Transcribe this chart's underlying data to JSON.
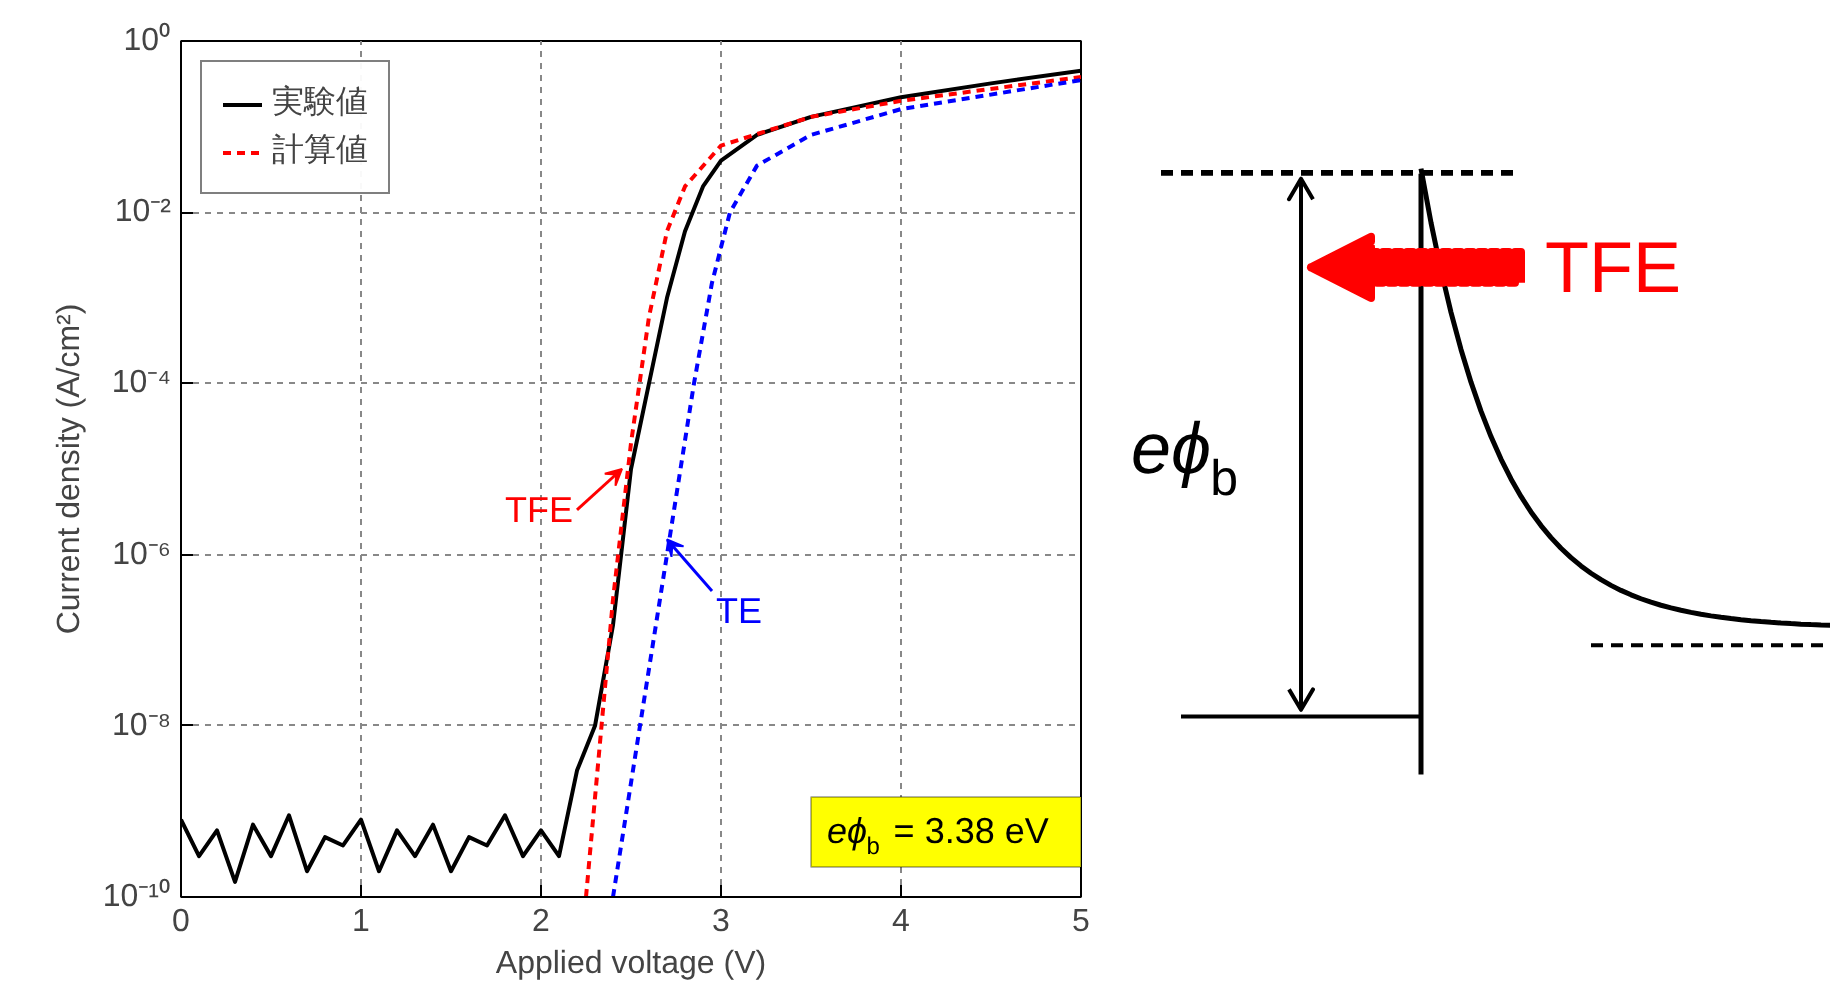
{
  "chart_data": [
    {
      "type": "line",
      "xlabel": "Applied voltage (V)",
      "ylabel": "Current density (A/cm²)",
      "log": "y",
      "xlim": [
        0,
        5
      ],
      "xticks": [
        0,
        1,
        2,
        3,
        4,
        5
      ],
      "ylim": [
        1e-10,
        1
      ],
      "yticks": [
        {
          "value": 1e-10,
          "label": "10⁻¹⁰"
        },
        {
          "value": 1e-08,
          "label": "10⁻⁸"
        },
        {
          "value": 1e-06,
          "label": "10⁻⁶"
        },
        {
          "value": 0.0001,
          "label": "10⁻⁴"
        },
        {
          "value": 0.01,
          "label": "10⁻²"
        },
        {
          "value": 1,
          "label": "10⁰"
        }
      ],
      "grid": true,
      "legend": "top left",
      "series": [
        {
          "name": "実験値",
          "color": "#000000",
          "line_style": "solid",
          "x": [
            0,
            0.1,
            0.2,
            0.3,
            0.4,
            0.5,
            0.6,
            0.7,
            0.8,
            0.9,
            1.0,
            1.1,
            1.2,
            1.3,
            1.4,
            1.5,
            1.6,
            1.7,
            1.8,
            1.9,
            2.0,
            2.1,
            2.2,
            2.3,
            2.4,
            2.5,
            2.6,
            2.7,
            2.8,
            2.9,
            3.0,
            3.2,
            3.5,
            4.0,
            4.5,
            5.0
          ],
          "values": [
            8e-10,
            3e-10,
            6e-10,
            1.5e-10,
            7e-10,
            3e-10,
            9e-10,
            2e-10,
            5e-10,
            4e-10,
            8e-10,
            2e-10,
            6e-10,
            3e-10,
            7e-10,
            2e-10,
            5e-10,
            4e-10,
            9e-10,
            3e-10,
            6e-10,
            3e-10,
            3e-09,
            1e-08,
            1.5e-07,
            1e-05,
            0.0001,
            0.001,
            0.006,
            0.02,
            0.04,
            0.08,
            0.13,
            0.22,
            0.32,
            0.45
          ]
        },
        {
          "name": "計算値",
          "color": "#ff0000",
          "line_style": "dashed",
          "x": [
            2.25,
            2.4,
            2.5,
            2.6,
            2.7,
            2.8,
            3.0,
            3.5,
            4.0,
            5.0
          ],
          "values": [
            1e-10,
            3e-07,
            2e-05,
            0.0006,
            0.006,
            0.02,
            0.06,
            0.13,
            0.2,
            0.38
          ]
        },
        {
          "color": "#0000ff",
          "line_style": "dashed",
          "x": [
            2.4,
            2.55,
            2.7,
            2.85,
            2.95,
            3.05,
            3.2,
            3.5,
            4.0,
            5.0
          ],
          "values": [
            1e-10,
            1e-08,
            1e-06,
            0.0001,
            0.0015,
            0.01,
            0.035,
            0.08,
            0.16,
            0.35
          ]
        }
      ],
      "annotations": [
        {
          "text": "TFE",
          "x": 2.45,
          "y": 1e-05
        },
        {
          "text": "TE",
          "x": 2.7,
          "y": 1.5e-06
        },
        "eϕ$_{b}$ = 3.38 eV"
      ]
    },
    {
      "type": "other",
      "annotations": [
        "TFE",
        "eϕ$_{b}$"
      ]
    }
  ]
}
